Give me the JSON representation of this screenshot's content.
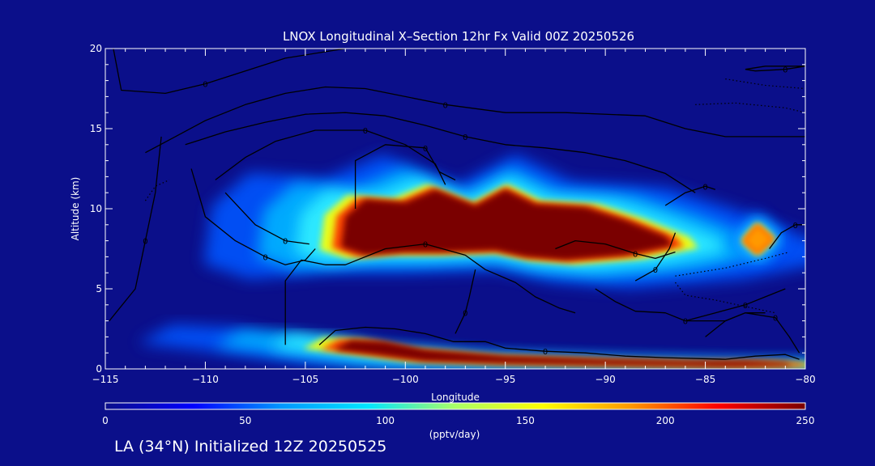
{
  "chart_data": {
    "type": "heatmap",
    "title": "LNOX Longitudinal X–Section 12hr  Fx Valid 00Z 20250526",
    "xlabel": "Longitude",
    "ylabel": "Altitude (km)",
    "xlim": [
      -115,
      -80
    ],
    "ylim": [
      0,
      20
    ],
    "x_ticks": [
      -115,
      -110,
      -105,
      -100,
      -95,
      -90,
      -85,
      -80
    ],
    "x_tick_labels": [
      "−115",
      "−110",
      "−105",
      "−100",
      "−95",
      "−90",
      "−85",
      "−80"
    ],
    "y_ticks": [
      0,
      5,
      10,
      15,
      20
    ],
    "y_tick_labels": [
      "0",
      "5",
      "10",
      "15",
      "20"
    ],
    "colorbar": {
      "label": "(pptv/day)",
      "range": [
        0,
        250
      ],
      "ticks": [
        0,
        50,
        100,
        150,
        200,
        250
      ],
      "tick_labels": [
        "0",
        "50",
        "100",
        "150",
        "200",
        "250"
      ],
      "colors": [
        "#0b0f8a",
        "#0000ff",
        "#0096ff",
        "#00e6ff",
        "#aaff66",
        "#ffff00",
        "#ff9900",
        "#ff0000",
        "#7a0000"
      ]
    },
    "regions": [
      {
        "name": "upper-max",
        "value": 250,
        "poly": [
          [
            -103.2,
            7.6
          ],
          [
            -103,
            9.5
          ],
          [
            -102,
            10.6
          ],
          [
            -100,
            10.4
          ],
          [
            -98.5,
            11.2
          ],
          [
            -96.5,
            10.2
          ],
          [
            -95,
            11.2
          ],
          [
            -93.5,
            10.3
          ],
          [
            -91,
            10.1
          ],
          [
            -89,
            9.3
          ],
          [
            -87,
            8.3
          ],
          [
            -86.6,
            7.7
          ],
          [
            -89,
            7.1
          ],
          [
            -92,
            6.8
          ],
          [
            -94,
            7
          ],
          [
            -95.5,
            7.4
          ],
          [
            -98,
            7.3
          ],
          [
            -100,
            7.3
          ],
          [
            -102,
            7.1
          ]
        ]
      },
      {
        "name": "east-core",
        "value": 180,
        "poly": [
          [
            -83.1,
            8
          ],
          [
            -82.4,
            9
          ],
          [
            -81.6,
            8.1
          ],
          [
            -82.4,
            7.2
          ]
        ]
      },
      {
        "name": "lower-band",
        "value": 250,
        "poly": [
          [
            -102.7,
            1.8
          ],
          [
            -101,
            1.7
          ],
          [
            -99,
            1.2
          ],
          [
            -95,
            0.8
          ],
          [
            -90,
            0.6
          ],
          [
            -86,
            0.5
          ],
          [
            -83,
            0.5
          ],
          [
            -81,
            0.4
          ],
          [
            -80.6,
            0.2
          ],
          [
            -84,
            0.15
          ],
          [
            -90,
            0.25
          ],
          [
            -95,
            0.35
          ],
          [
            -99,
            0.5
          ],
          [
            -101.5,
            0.9
          ],
          [
            -103.6,
            1.2
          ]
        ]
      }
    ],
    "contours": [
      {
        "label": "0",
        "points": [
          [
            -114.6,
            20
          ],
          [
            -114.2,
            17.4
          ],
          [
            -112,
            17.2
          ],
          [
            -110,
            17.8
          ],
          [
            -108,
            18.6
          ],
          [
            -106,
            19.4
          ],
          [
            -103,
            20
          ]
        ]
      },
      {
        "label": "0",
        "points": [
          [
            -113,
            13.5
          ],
          [
            -111.5,
            14.5
          ],
          [
            -110,
            15.5
          ],
          [
            -108,
            16.5
          ],
          [
            -106,
            17.2
          ],
          [
            -104,
            17.6
          ],
          [
            -102,
            17.5
          ],
          [
            -100,
            17
          ],
          [
            -98,
            16.5
          ],
          [
            -95,
            16
          ],
          [
            -92,
            16
          ],
          [
            -88,
            15.8
          ],
          [
            -86,
            15
          ],
          [
            -84,
            14.5
          ],
          [
            -82,
            14.5
          ],
          [
            -80,
            14.5
          ]
        ]
      },
      {
        "label": "0",
        "points": [
          [
            -111,
            14
          ],
          [
            -109,
            14.8
          ],
          [
            -107,
            15.4
          ],
          [
            -105,
            15.9
          ],
          [
            -103,
            16
          ],
          [
            -101,
            15.8
          ],
          [
            -99,
            15.2
          ],
          [
            -97,
            14.5
          ],
          [
            -95,
            14
          ],
          [
            -93,
            13.8
          ],
          [
            -91,
            13.5
          ],
          [
            -89,
            13
          ],
          [
            -87,
            12.2
          ],
          [
            -85.5,
            11
          ]
        ]
      },
      {
        "label": "0",
        "points": [
          [
            -109.5,
            11.8
          ],
          [
            -108,
            13.2
          ],
          [
            -106.5,
            14.2
          ],
          [
            -104.5,
            14.9
          ],
          [
            -102,
            14.9
          ],
          [
            -100,
            14
          ],
          [
            -98.5,
            12.8
          ],
          [
            -98,
            11.5
          ]
        ]
      },
      {
        "label": "0",
        "points": [
          [
            -110.7,
            12.5
          ],
          [
            -110,
            9.5
          ],
          [
            -108.5,
            8
          ],
          [
            -107,
            7
          ],
          [
            -106,
            6.5
          ],
          [
            -105,
            6.8
          ],
          [
            -104.5,
            7.5
          ]
        ]
      },
      {
        "label": "0",
        "points": [
          [
            -109,
            11
          ],
          [
            -107.5,
            9
          ],
          [
            -106,
            8
          ],
          [
            -104.8,
            7.8
          ]
        ]
      },
      {
        "label": "0",
        "points": [
          [
            -102.5,
            10
          ],
          [
            -102.5,
            13
          ],
          [
            -101,
            14
          ],
          [
            -99,
            13.8
          ],
          [
            -98.3,
            12.3
          ],
          [
            -97.5,
            11.8
          ]
        ]
      },
      {
        "label": "0",
        "points": [
          [
            -114.8,
            3
          ],
          [
            -113.5,
            5
          ],
          [
            -113,
            8
          ],
          [
            -112.5,
            11
          ],
          [
            -112.2,
            14.5
          ]
        ]
      },
      {
        "label": "0",
        "points": [
          [
            -106,
            1.5
          ],
          [
            -106,
            5.5
          ],
          [
            -105.2,
            6.8
          ],
          [
            -104,
            6.5
          ],
          [
            -103,
            6.5
          ],
          [
            -101,
            7.5
          ],
          [
            -99,
            7.8
          ],
          [
            -97,
            7.1
          ],
          [
            -96,
            6.2
          ],
          [
            -94.5,
            5.4
          ],
          [
            -93.5,
            4.5
          ],
          [
            -92.3,
            3.8
          ],
          [
            -91.5,
            3.5
          ]
        ]
      },
      {
        "label": "0",
        "points": [
          [
            -104.3,
            1.5
          ],
          [
            -103.5,
            2.4
          ],
          [
            -102,
            2.6
          ],
          [
            -100.5,
            2.5
          ],
          [
            -99,
            2.2
          ],
          [
            -97.6,
            1.7
          ],
          [
            -96,
            1.7
          ],
          [
            -95,
            1.3
          ],
          [
            -93,
            1.1
          ],
          [
            -91,
            1
          ],
          [
            -89,
            0.8
          ],
          [
            -87,
            0.7
          ],
          [
            -84,
            0.6
          ],
          [
            -82.5,
            0.8
          ],
          [
            -81,
            0.9
          ],
          [
            -80.3,
            0.6
          ]
        ]
      },
      {
        "label": "0",
        "points": [
          [
            -96.5,
            6.2
          ],
          [
            -96.8,
            4.5
          ],
          [
            -97,
            3.5
          ],
          [
            -97.5,
            2.2
          ]
        ]
      },
      {
        "label": "0",
        "points": [
          [
            -92.5,
            7.5
          ],
          [
            -91.5,
            8
          ],
          [
            -90,
            7.8
          ],
          [
            -88.5,
            7.2
          ],
          [
            -87.5,
            6.9
          ],
          [
            -86.5,
            7.3
          ]
        ]
      },
      {
        "label": "0",
        "points": [
          [
            -90.5,
            5
          ],
          [
            -89.5,
            4.2
          ],
          [
            -88.5,
            3.6
          ],
          [
            -87,
            3.5
          ],
          [
            -86,
            3
          ],
          [
            -84,
            3
          ],
          [
            -83,
            3.5
          ],
          [
            -82,
            3.5
          ]
        ]
      },
      {
        "label": "0",
        "points": [
          [
            -86.5,
            8.5
          ],
          [
            -86.8,
            7.5
          ],
          [
            -87.5,
            6.2
          ],
          [
            -88.5,
            5.5
          ]
        ]
      },
      {
        "label": "0",
        "points": [
          [
            -81.8,
            7.5
          ],
          [
            -81.2,
            8.5
          ],
          [
            -80.5,
            9
          ],
          [
            -80,
            9
          ]
        ]
      },
      {
        "label": "0",
        "points": [
          [
            -85,
            2
          ],
          [
            -84,
            3
          ],
          [
            -83,
            3.5
          ],
          [
            -81.5,
            3.2
          ],
          [
            -80.8,
            2
          ],
          [
            -80.3,
            1
          ]
        ]
      },
      {
        "label": "0",
        "points": [
          [
            -87,
            10.2
          ],
          [
            -86,
            11
          ],
          [
            -85,
            11.4
          ],
          [
            -84.5,
            11.2
          ]
        ]
      },
      {
        "label": "0",
        "points": [
          [
            -83,
            18.7
          ],
          [
            -82,
            18.9
          ],
          [
            -80,
            18.9
          ],
          [
            -81,
            18.7
          ],
          [
            -82.5,
            18.6
          ],
          [
            -83,
            18.7
          ]
        ]
      },
      {
        "label": "0",
        "points": [
          [
            -86,
            3
          ],
          [
            -84.5,
            3.5
          ],
          [
            -83,
            4
          ],
          [
            -82,
            4.5
          ],
          [
            -81,
            5
          ]
        ]
      }
    ],
    "dotted_contours": [
      {
        "points": [
          [
            -86.5,
            5.4
          ],
          [
            -86,
            4.6
          ],
          [
            -84.5,
            4.3
          ],
          [
            -83,
            3.9
          ],
          [
            -81.5,
            3.5
          ]
        ]
      },
      {
        "points": [
          [
            -86.5,
            5.8
          ],
          [
            -84,
            6.3
          ],
          [
            -82,
            6.9
          ],
          [
            -80.8,
            7.3
          ]
        ]
      },
      {
        "points": [
          [
            -84,
            18.1
          ],
          [
            -82,
            17.7
          ],
          [
            -80,
            17.5
          ]
        ]
      },
      {
        "points": [
          [
            -85.5,
            16.5
          ],
          [
            -83.5,
            16.6
          ],
          [
            -81,
            16.3
          ],
          [
            -80,
            16
          ]
        ]
      },
      {
        "points": [
          [
            -113,
            10.5
          ],
          [
            -112.5,
            11.4
          ],
          [
            -111.8,
            11.8
          ]
        ]
      }
    ]
  },
  "footer": "LA (34°N) Initialized 12Z 20250525"
}
